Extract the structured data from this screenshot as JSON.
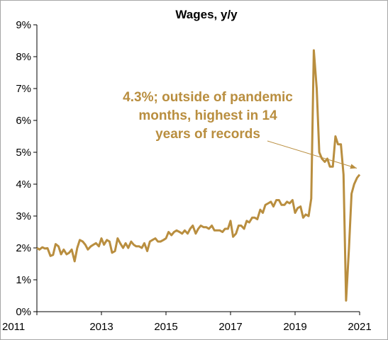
{
  "chart_data": {
    "type": "line",
    "title": "Wages, y/y",
    "xlabel": "",
    "ylabel": "",
    "xlim": [
      2011,
      2021
    ],
    "ylim": [
      0,
      9
    ],
    "y_ticks": [
      0,
      1,
      2,
      3,
      4,
      5,
      6,
      7,
      8,
      9
    ],
    "y_tick_labels": [
      "0%",
      "1%",
      "2%",
      "3%",
      "4%",
      "5%",
      "6%",
      "7%",
      "8%",
      "9%"
    ],
    "x_ticks": [
      2011,
      2013,
      2015,
      2017,
      2019,
      2021
    ],
    "x_tick_labels": [
      "2011",
      "2013",
      "2015",
      "2017",
      "2019",
      "2021"
    ],
    "grid": false,
    "line_color": "#B98E3F",
    "series": [
      {
        "x": [
          2011.0,
          2011.08,
          2011.17,
          2011.25,
          2011.33,
          2011.42,
          2011.5,
          2011.58,
          2011.67,
          2011.75,
          2011.83,
          2011.92,
          2012.0,
          2012.08,
          2012.17,
          2012.25,
          2012.33,
          2012.42,
          2012.5,
          2012.58,
          2012.67,
          2012.75,
          2012.83,
          2012.92,
          2013.0,
          2013.08,
          2013.17,
          2013.25,
          2013.33,
          2013.42,
          2013.5,
          2013.58,
          2013.67,
          2013.75,
          2013.83,
          2013.92,
          2014.0,
          2014.08,
          2014.17,
          2014.25,
          2014.33,
          2014.42,
          2014.5,
          2014.58,
          2014.67,
          2014.75,
          2014.83,
          2014.92,
          2015.0,
          2015.08,
          2015.17,
          2015.25,
          2015.33,
          2015.42,
          2015.5,
          2015.58,
          2015.67,
          2015.75,
          2015.83,
          2015.92,
          2016.0,
          2016.08,
          2016.17,
          2016.25,
          2016.33,
          2016.42,
          2016.5,
          2016.58,
          2016.67,
          2016.75,
          2016.83,
          2016.92,
          2017.0,
          2017.08,
          2017.17,
          2017.25,
          2017.33,
          2017.42,
          2017.5,
          2017.58,
          2017.67,
          2017.75,
          2017.83,
          2017.92,
          2018.0,
          2018.08,
          2018.17,
          2018.25,
          2018.33,
          2018.42,
          2018.5,
          2018.58,
          2018.67,
          2018.75,
          2018.83,
          2018.92,
          2019.0,
          2019.08,
          2019.17,
          2019.25,
          2019.33,
          2019.42,
          2019.5,
          2019.58,
          2019.67,
          2019.75,
          2019.83,
          2019.92,
          2020.0,
          2020.08,
          2020.17,
          2020.25,
          2020.33,
          2020.42,
          2020.5,
          2020.58,
          2020.67,
          2020.75,
          2020.83,
          2020.92,
          2021.0
        ],
        "values": [
          2.0,
          1.95,
          2.02,
          1.98,
          1.99,
          1.75,
          1.78,
          2.12,
          2.05,
          1.8,
          1.95,
          1.8,
          1.85,
          1.95,
          1.58,
          2.0,
          2.25,
          2.2,
          2.1,
          1.95,
          2.05,
          2.1,
          2.15,
          2.05,
          2.3,
          2.1,
          2.25,
          2.2,
          1.85,
          1.9,
          2.3,
          2.15,
          2.0,
          2.15,
          2.0,
          2.2,
          2.1,
          2.05,
          2.05,
          2.0,
          2.15,
          1.9,
          2.2,
          2.25,
          2.3,
          2.2,
          2.2,
          2.25,
          2.3,
          2.5,
          2.4,
          2.5,
          2.55,
          2.5,
          2.45,
          2.55,
          2.45,
          2.6,
          2.7,
          2.45,
          2.6,
          2.7,
          2.65,
          2.65,
          2.6,
          2.7,
          2.55,
          2.55,
          2.55,
          2.5,
          2.6,
          2.6,
          2.85,
          2.35,
          2.45,
          2.7,
          2.7,
          2.6,
          2.85,
          2.8,
          2.95,
          2.95,
          2.9,
          3.2,
          3.1,
          3.35,
          3.4,
          3.45,
          3.3,
          3.5,
          3.5,
          3.35,
          3.35,
          3.45,
          3.4,
          3.5,
          3.1,
          3.25,
          3.3,
          2.95,
          3.05,
          3.0,
          3.55,
          8.2,
          7.0,
          5.0,
          4.8,
          4.7,
          4.8,
          4.55,
          4.55,
          5.5,
          5.25,
          5.25,
          4.3,
          0.35,
          2.0,
          3.7,
          4.0,
          4.2,
          4.3
        ]
      }
    ],
    "annotation": {
      "lines": [
        "4.3%; outside of pandemic",
        "months, highest in 14",
        "years of records"
      ],
      "color": "#B98E3F",
      "arrow_end": [
        2021.0,
        4.5
      ]
    }
  }
}
